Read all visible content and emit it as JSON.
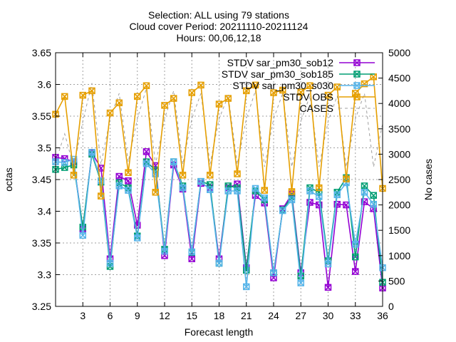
{
  "chart_data": {
    "type": "line",
    "title_lines": [
      "Selection: ALL using    79 stations",
      "Cloud cover   Period: 20211110-20211124",
      "Hours: 00,06,12,18"
    ],
    "xlabel": "Forecast length",
    "ylabel": "octas",
    "y2label": "No cases",
    "xlim": [
      0,
      36
    ],
    "ylim": [
      3.25,
      3.65
    ],
    "y2lim": [
      0,
      5000
    ],
    "xticks": [
      3,
      6,
      9,
      12,
      15,
      18,
      21,
      24,
      27,
      30,
      33,
      36
    ],
    "yticks": [
      3.25,
      3.3,
      3.35,
      3.4,
      3.45,
      3.5,
      3.55,
      3.6,
      3.65
    ],
    "ytick_labels": [
      "3.25",
      "3.3",
      "3.35",
      "3.4",
      "3.45",
      "3.5",
      "3.55",
      "3.6",
      "3.65"
    ],
    "y2ticks": [
      0,
      500,
      1000,
      1500,
      2000,
      2500,
      3000,
      3500,
      4000,
      4500,
      5000
    ],
    "grid": true,
    "legend_position": "top-right",
    "x": [
      0,
      1,
      2,
      3,
      4,
      5,
      6,
      7,
      8,
      9,
      10,
      11,
      12,
      13,
      14,
      15,
      16,
      17,
      18,
      19,
      20,
      21,
      22,
      23,
      24,
      25,
      26,
      27,
      28,
      29,
      30,
      31,
      32,
      33,
      34,
      35,
      36
    ],
    "series": [
      {
        "name": "STDV sar_pm30_sob12",
        "axis": "y1",
        "color": "#9400d3",
        "values": [
          3.485,
          3.483,
          3.478,
          3.372,
          3.492,
          3.468,
          3.325,
          3.455,
          3.448,
          3.378,
          3.494,
          3.472,
          3.33,
          3.473,
          3.435,
          3.325,
          3.444,
          3.437,
          3.325,
          3.437,
          3.443,
          3.311,
          3.425,
          3.413,
          3.295,
          3.404,
          3.427,
          3.303,
          3.414,
          3.41,
          3.28,
          3.411,
          3.41,
          3.305,
          3.415,
          3.404,
          3.279
        ]
      },
      {
        "name": "STDV sar_pm30_sob185",
        "axis": "y1",
        "color": "#009e73",
        "values": [
          3.466,
          3.469,
          3.473,
          3.375,
          3.49,
          3.446,
          3.313,
          3.445,
          3.437,
          3.361,
          3.478,
          3.465,
          3.34,
          3.478,
          3.44,
          3.335,
          3.447,
          3.442,
          3.318,
          3.44,
          3.437,
          3.307,
          3.432,
          3.418,
          3.303,
          3.402,
          3.423,
          3.298,
          3.437,
          3.43,
          3.322,
          3.43,
          3.453,
          3.328,
          3.44,
          3.425,
          3.288
        ]
      },
      {
        "name": "STDV sar_pm30_s030",
        "axis": "y1",
        "color": "#56b4e9",
        "values": [
          3.478,
          3.477,
          3.482,
          3.362,
          3.493,
          3.448,
          3.318,
          3.44,
          3.433,
          3.358,
          3.475,
          3.459,
          3.337,
          3.478,
          3.437,
          3.336,
          3.447,
          3.434,
          3.318,
          3.432,
          3.432,
          3.281,
          3.436,
          3.421,
          3.303,
          3.401,
          3.418,
          3.287,
          3.432,
          3.423,
          3.317,
          3.426,
          3.445,
          3.348,
          3.43,
          3.411,
          3.311
        ]
      },
      {
        "name": "STDV OBS",
        "axis": "y1",
        "color": "#e69f00",
        "values": [
          3.553,
          3.581,
          3.457,
          3.583,
          3.59,
          3.424,
          3.555,
          3.571,
          3.461,
          3.581,
          3.598,
          3.43,
          3.567,
          3.578,
          3.457,
          3.587,
          3.599,
          3.457,
          3.569,
          3.578,
          3.459,
          3.59,
          3.599,
          3.433,
          3.587,
          3.591,
          3.431,
          3.588,
          3.598,
          3.437,
          3.583,
          3.596,
          3.451,
          3.586,
          3.601,
          3.612,
          3.436
        ]
      },
      {
        "name": "CASES",
        "axis": "y2",
        "color": "#a0a0a0",
        "dashed": true,
        "values": [
          2850,
          3400,
          2750,
          3650,
          4400,
          2800,
          3700,
          4200,
          2850,
          3700,
          4300,
          2800,
          3700,
          4250,
          2800,
          3700,
          4200,
          2800,
          3700,
          4150,
          2800,
          3700,
          4250,
          2750,
          3700,
          4200,
          2750,
          3650,
          4150,
          2750,
          3650,
          4150,
          2750,
          3700,
          4200,
          2750,
          3600
        ]
      }
    ]
  }
}
